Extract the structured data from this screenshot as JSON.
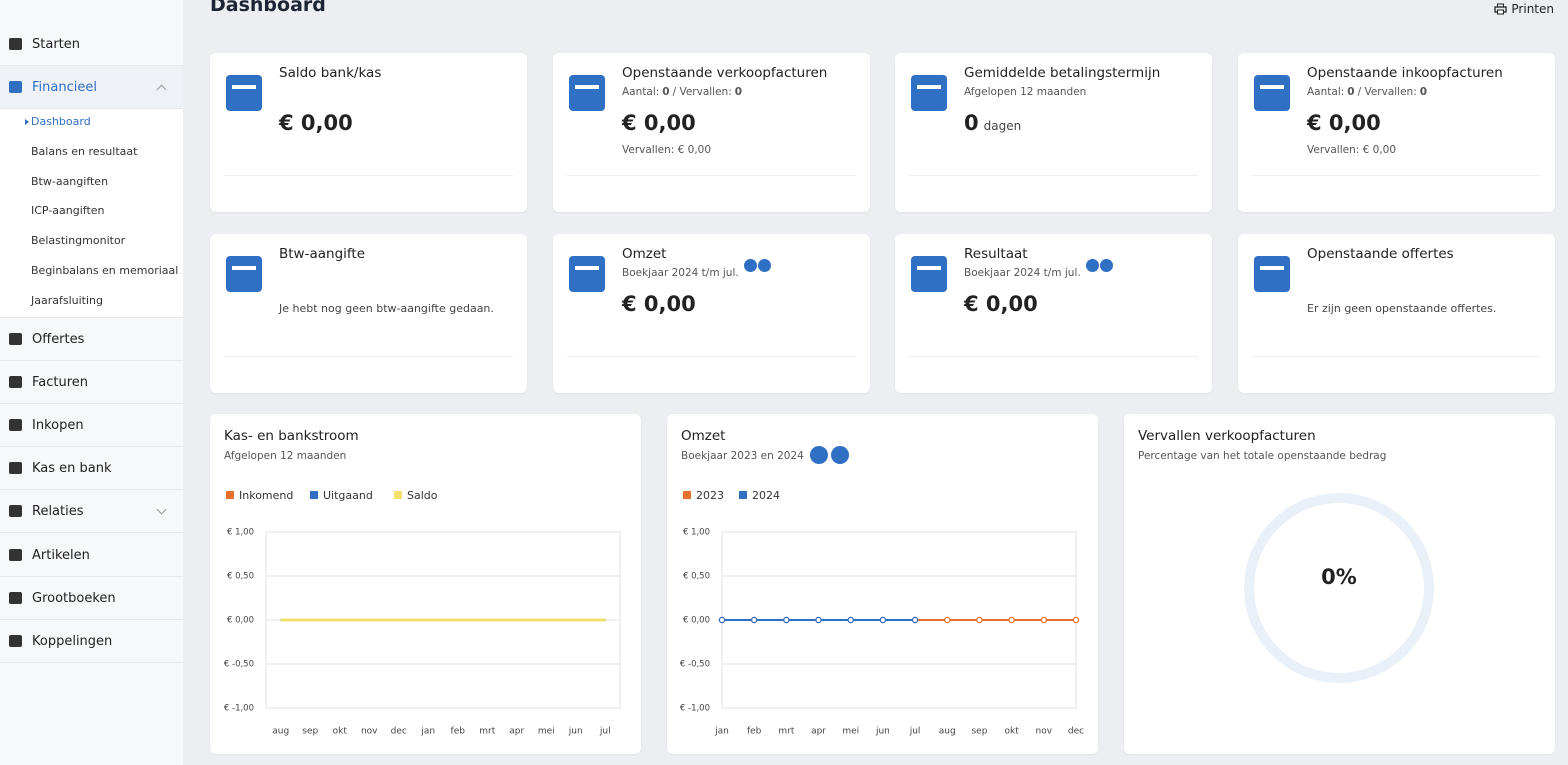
{
  "header": {
    "title": "Dashboard",
    "print": "Printen"
  },
  "sidebar": {
    "items": [
      "Starten",
      "Financieel",
      "Offertes",
      "Facturen",
      "Inkopen",
      "Kas en bank",
      "Relaties",
      "Artikelen",
      "Grootboeken",
      "Koppelingen"
    ],
    "submenu": [
      "Dashboard",
      "Balans en resultaat",
      "Btw-aangiften",
      "ICP-aangiften",
      "Belastingmonitor",
      "Beginbalans en memoriaal",
      "Jaarafsluiting"
    ]
  },
  "cards": [
    {
      "title": "Saldo bank/kas",
      "value": "€ 0,00"
    },
    {
      "title": "Openstaande verkoopfacturen",
      "meta": [
        "Aantal:",
        "0",
        "/ Vervallen:",
        "0"
      ],
      "value": "€ 0,00",
      "note": "Vervallen: € 0,00"
    },
    {
      "title": "Gemiddelde betalingstermijn",
      "subtitle": "Afgelopen 12 maanden",
      "value": "0",
      "unit": "dagen"
    },
    {
      "title": "Openstaande inkoopfacturen",
      "meta": [
        "Aantal:",
        "0",
        "/ Vervallen:",
        "0"
      ],
      "value": "€ 0,00",
      "note": "Vervallen: € 0,00"
    },
    {
      "title": "Btw-aangifte",
      "message": "Je hebt nog geen btw-aangifte gedaan."
    },
    {
      "title": "Omzet",
      "subtitle": "Boekjaar 2024 t/m jul.",
      "value": "€ 0,00"
    },
    {
      "title": "Resultaat",
      "subtitle": "Boekjaar 2024 t/m jul.",
      "value": "€ 0,00"
    },
    {
      "title": "Openstaande offertes",
      "message": "Er zijn geen openstaande offertes."
    }
  ],
  "charts": [
    {
      "type": "line",
      "title": "Kas- en bankstroom",
      "subtitle": "Afgelopen 12 maanden",
      "categories": [
        "aug",
        "sep",
        "okt",
        "nov",
        "dec",
        "jan",
        "feb",
        "mrt",
        "apr",
        "mei",
        "jun",
        "jul"
      ],
      "series": [
        {
          "name": "Inkomend",
          "color": "#e8702a",
          "values": [
            0,
            0,
            0,
            0,
            0,
            0,
            0,
            0,
            0,
            0,
            0,
            0
          ]
        },
        {
          "name": "Uitgaand",
          "color": "#2f6fc4",
          "values": [
            0,
            0,
            0,
            0,
            0,
            0,
            0,
            0,
            0,
            0,
            0,
            0
          ]
        },
        {
          "name": "Saldo",
          "color": "#f3e06a",
          "values": [
            0,
            0,
            0,
            0,
            0,
            0,
            0,
            0,
            0,
            0,
            0,
            0
          ]
        }
      ],
      "ylim": [
        -1,
        1
      ],
      "yticks": [
        {
          "value": 1,
          "label": "€ 1,00"
        },
        {
          "value": 0.5,
          "label": "€ 0,50"
        },
        {
          "value": 0,
          "label": "€ 0,00"
        },
        {
          "value": -0.5,
          "label": "€ -0,50"
        },
        {
          "value": -1,
          "label": "€ -1,00"
        }
      ],
      "grid": true
    },
    {
      "type": "line",
      "title": "Omzet",
      "subtitle": "Boekjaar 2023 en 2024",
      "markers": true,
      "categories": [
        "jan",
        "feb",
        "mrt",
        "apr",
        "mei",
        "jun",
        "jul",
        "aug",
        "sep",
        "okt",
        "nov",
        "dec"
      ],
      "series": [
        {
          "name": "2023",
          "color": "#e8702a",
          "values": [
            0,
            0,
            0,
            0,
            0,
            0,
            0,
            0,
            0,
            0,
            0,
            0
          ]
        },
        {
          "name": "2024",
          "color": "#2f6fc4",
          "values": [
            0,
            0,
            0,
            0,
            0,
            0,
            0,
            null,
            null,
            null,
            null,
            null
          ]
        }
      ],
      "ylim": [
        -1,
        1
      ],
      "yticks": [
        {
          "value": 1,
          "label": "€ 1,00"
        },
        {
          "value": 0.5,
          "label": "€ 0,50"
        },
        {
          "value": 0,
          "label": "€ 0,00"
        },
        {
          "value": -0.5,
          "label": "€ -0,50"
        },
        {
          "value": -1,
          "label": "€ -1,00"
        }
      ],
      "grid": true
    },
    {
      "type": "donut",
      "title": "Vervallen verkoopfacturen",
      "subtitle": "Percentage van het totale openstaande bedrag",
      "values": [
        0
      ],
      "value_labels": [
        "0%"
      ],
      "color": "#2f6fc4"
    }
  ]
}
